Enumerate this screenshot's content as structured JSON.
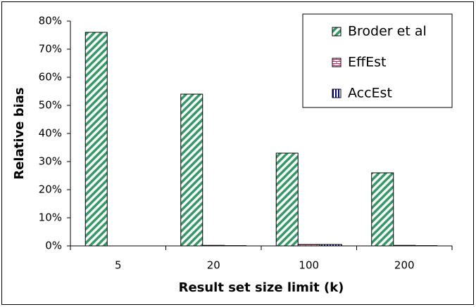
{
  "chart_data": {
    "type": "bar",
    "x_label": "Result set size limit (k)",
    "y_label": "Relative bias",
    "categories": [
      "5",
      "20",
      "100",
      "200"
    ],
    "series": [
      {
        "name": "Broder et al",
        "color": "#339966",
        "pattern": "diagonal",
        "values": [
          76,
          54,
          33,
          26
        ]
      },
      {
        "name": "EffEst",
        "color": "#cc3366",
        "pattern": "brick",
        "values": [
          0,
          0.2,
          0.5,
          0.2
        ]
      },
      {
        "name": "AccEst",
        "color": "#000099",
        "pattern": "vertical",
        "values": [
          0,
          0.1,
          0.5,
          0.1
        ]
      }
    ],
    "ylim": [
      0,
      80
    ],
    "yticks": [
      {
        "value": 0,
        "label": "0%"
      },
      {
        "value": 10,
        "label": "10%"
      },
      {
        "value": 20,
        "label": "20%"
      },
      {
        "value": 30,
        "label": "30%"
      },
      {
        "value": 40,
        "label": "40%"
      },
      {
        "value": 50,
        "label": "50%"
      },
      {
        "value": 60,
        "label": "60%"
      },
      {
        "value": 70,
        "label": "70%"
      },
      {
        "value": 80,
        "label": "80%"
      }
    ],
    "legend": "upper-right"
  }
}
